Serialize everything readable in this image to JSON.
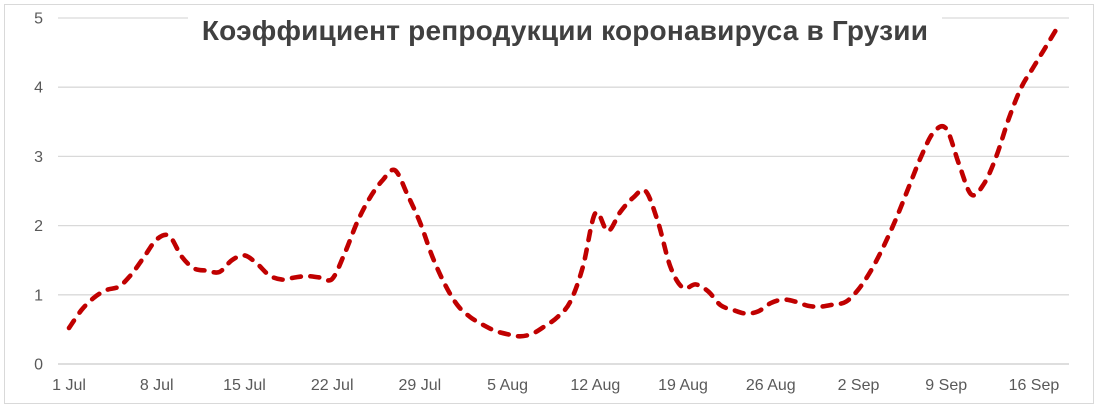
{
  "chart_data": {
    "type": "line",
    "title": "Коэффициент репродукции коронавируса в Грузии",
    "xlabel": "",
    "ylabel": "",
    "ylim": [
      0,
      5
    ],
    "y_ticks": [
      0,
      1,
      2,
      3,
      4,
      5
    ],
    "grid": "horizontal",
    "legend": "none",
    "line_style": "dashed",
    "x_tick_every": 7,
    "x_tick_labels": [
      "1 Jul",
      "8 Jul",
      "15 Jul",
      "22 Jul",
      "29 Jul",
      "5 Aug",
      "12 Aug",
      "19 Aug",
      "26 Aug",
      "2 Sep",
      "9 Sep",
      "16 Sep"
    ],
    "x": [
      "1 Jul",
      "2 Jul",
      "3 Jul",
      "4 Jul",
      "5 Jul",
      "6 Jul",
      "7 Jul",
      "8 Jul",
      "9 Jul",
      "10 Jul",
      "11 Jul",
      "12 Jul",
      "13 Jul",
      "14 Jul",
      "15 Jul",
      "16 Jul",
      "17 Jul",
      "18 Jul",
      "19 Jul",
      "20 Jul",
      "21 Jul",
      "22 Jul",
      "23 Jul",
      "24 Jul",
      "25 Jul",
      "26 Jul",
      "27 Jul",
      "28 Jul",
      "29 Jul",
      "30 Jul",
      "31 Jul",
      "1 Aug",
      "2 Aug",
      "3 Aug",
      "4 Aug",
      "5 Aug",
      "6 Aug",
      "7 Aug",
      "8 Aug",
      "9 Aug",
      "10 Aug",
      "11 Aug",
      "12 Aug",
      "13 Aug",
      "14 Aug",
      "15 Aug",
      "16 Aug",
      "17 Aug",
      "18 Aug",
      "19 Aug",
      "20 Aug",
      "21 Aug",
      "22 Aug",
      "23 Aug",
      "24 Aug",
      "25 Aug",
      "26 Aug",
      "27 Aug",
      "28 Aug",
      "29 Aug",
      "30 Aug",
      "31 Aug",
      "1 Sep",
      "2 Sep",
      "3 Sep",
      "4 Sep",
      "5 Sep",
      "6 Sep",
      "7 Sep",
      "8 Sep",
      "9 Sep",
      "10 Sep",
      "11 Sep",
      "12 Sep",
      "13 Sep",
      "14 Sep",
      "15 Sep",
      "16 Sep",
      "17 Sep",
      "18 Sep"
    ],
    "values": [
      0.52,
      0.78,
      0.96,
      1.07,
      1.12,
      1.3,
      1.55,
      1.8,
      1.85,
      1.55,
      1.38,
      1.35,
      1.33,
      1.5,
      1.57,
      1.45,
      1.28,
      1.22,
      1.25,
      1.27,
      1.25,
      1.23,
      1.6,
      2.05,
      2.4,
      2.65,
      2.8,
      2.45,
      2.05,
      1.55,
      1.15,
      0.85,
      0.68,
      0.57,
      0.48,
      0.43,
      0.4,
      0.44,
      0.55,
      0.68,
      0.9,
      1.4,
      2.18,
      1.92,
      2.2,
      2.4,
      2.5,
      2.05,
      1.4,
      1.1,
      1.15,
      1.05,
      0.85,
      0.78,
      0.73,
      0.76,
      0.88,
      0.93,
      0.9,
      0.84,
      0.83,
      0.86,
      0.9,
      1.08,
      1.35,
      1.7,
      2.1,
      2.55,
      3.0,
      3.35,
      3.4,
      2.9,
      2.45,
      2.6,
      3.0,
      3.55,
      4.0,
      4.3,
      4.6,
      4.9
    ],
    "colors": {
      "line": "#C00000",
      "gridline": "#D9D9D9",
      "axis_line": "#C9C9C9",
      "axis_text": "#595959",
      "title_text": "#404040",
      "border": "#D9D9D9",
      "background": "#FFFFFF"
    }
  }
}
